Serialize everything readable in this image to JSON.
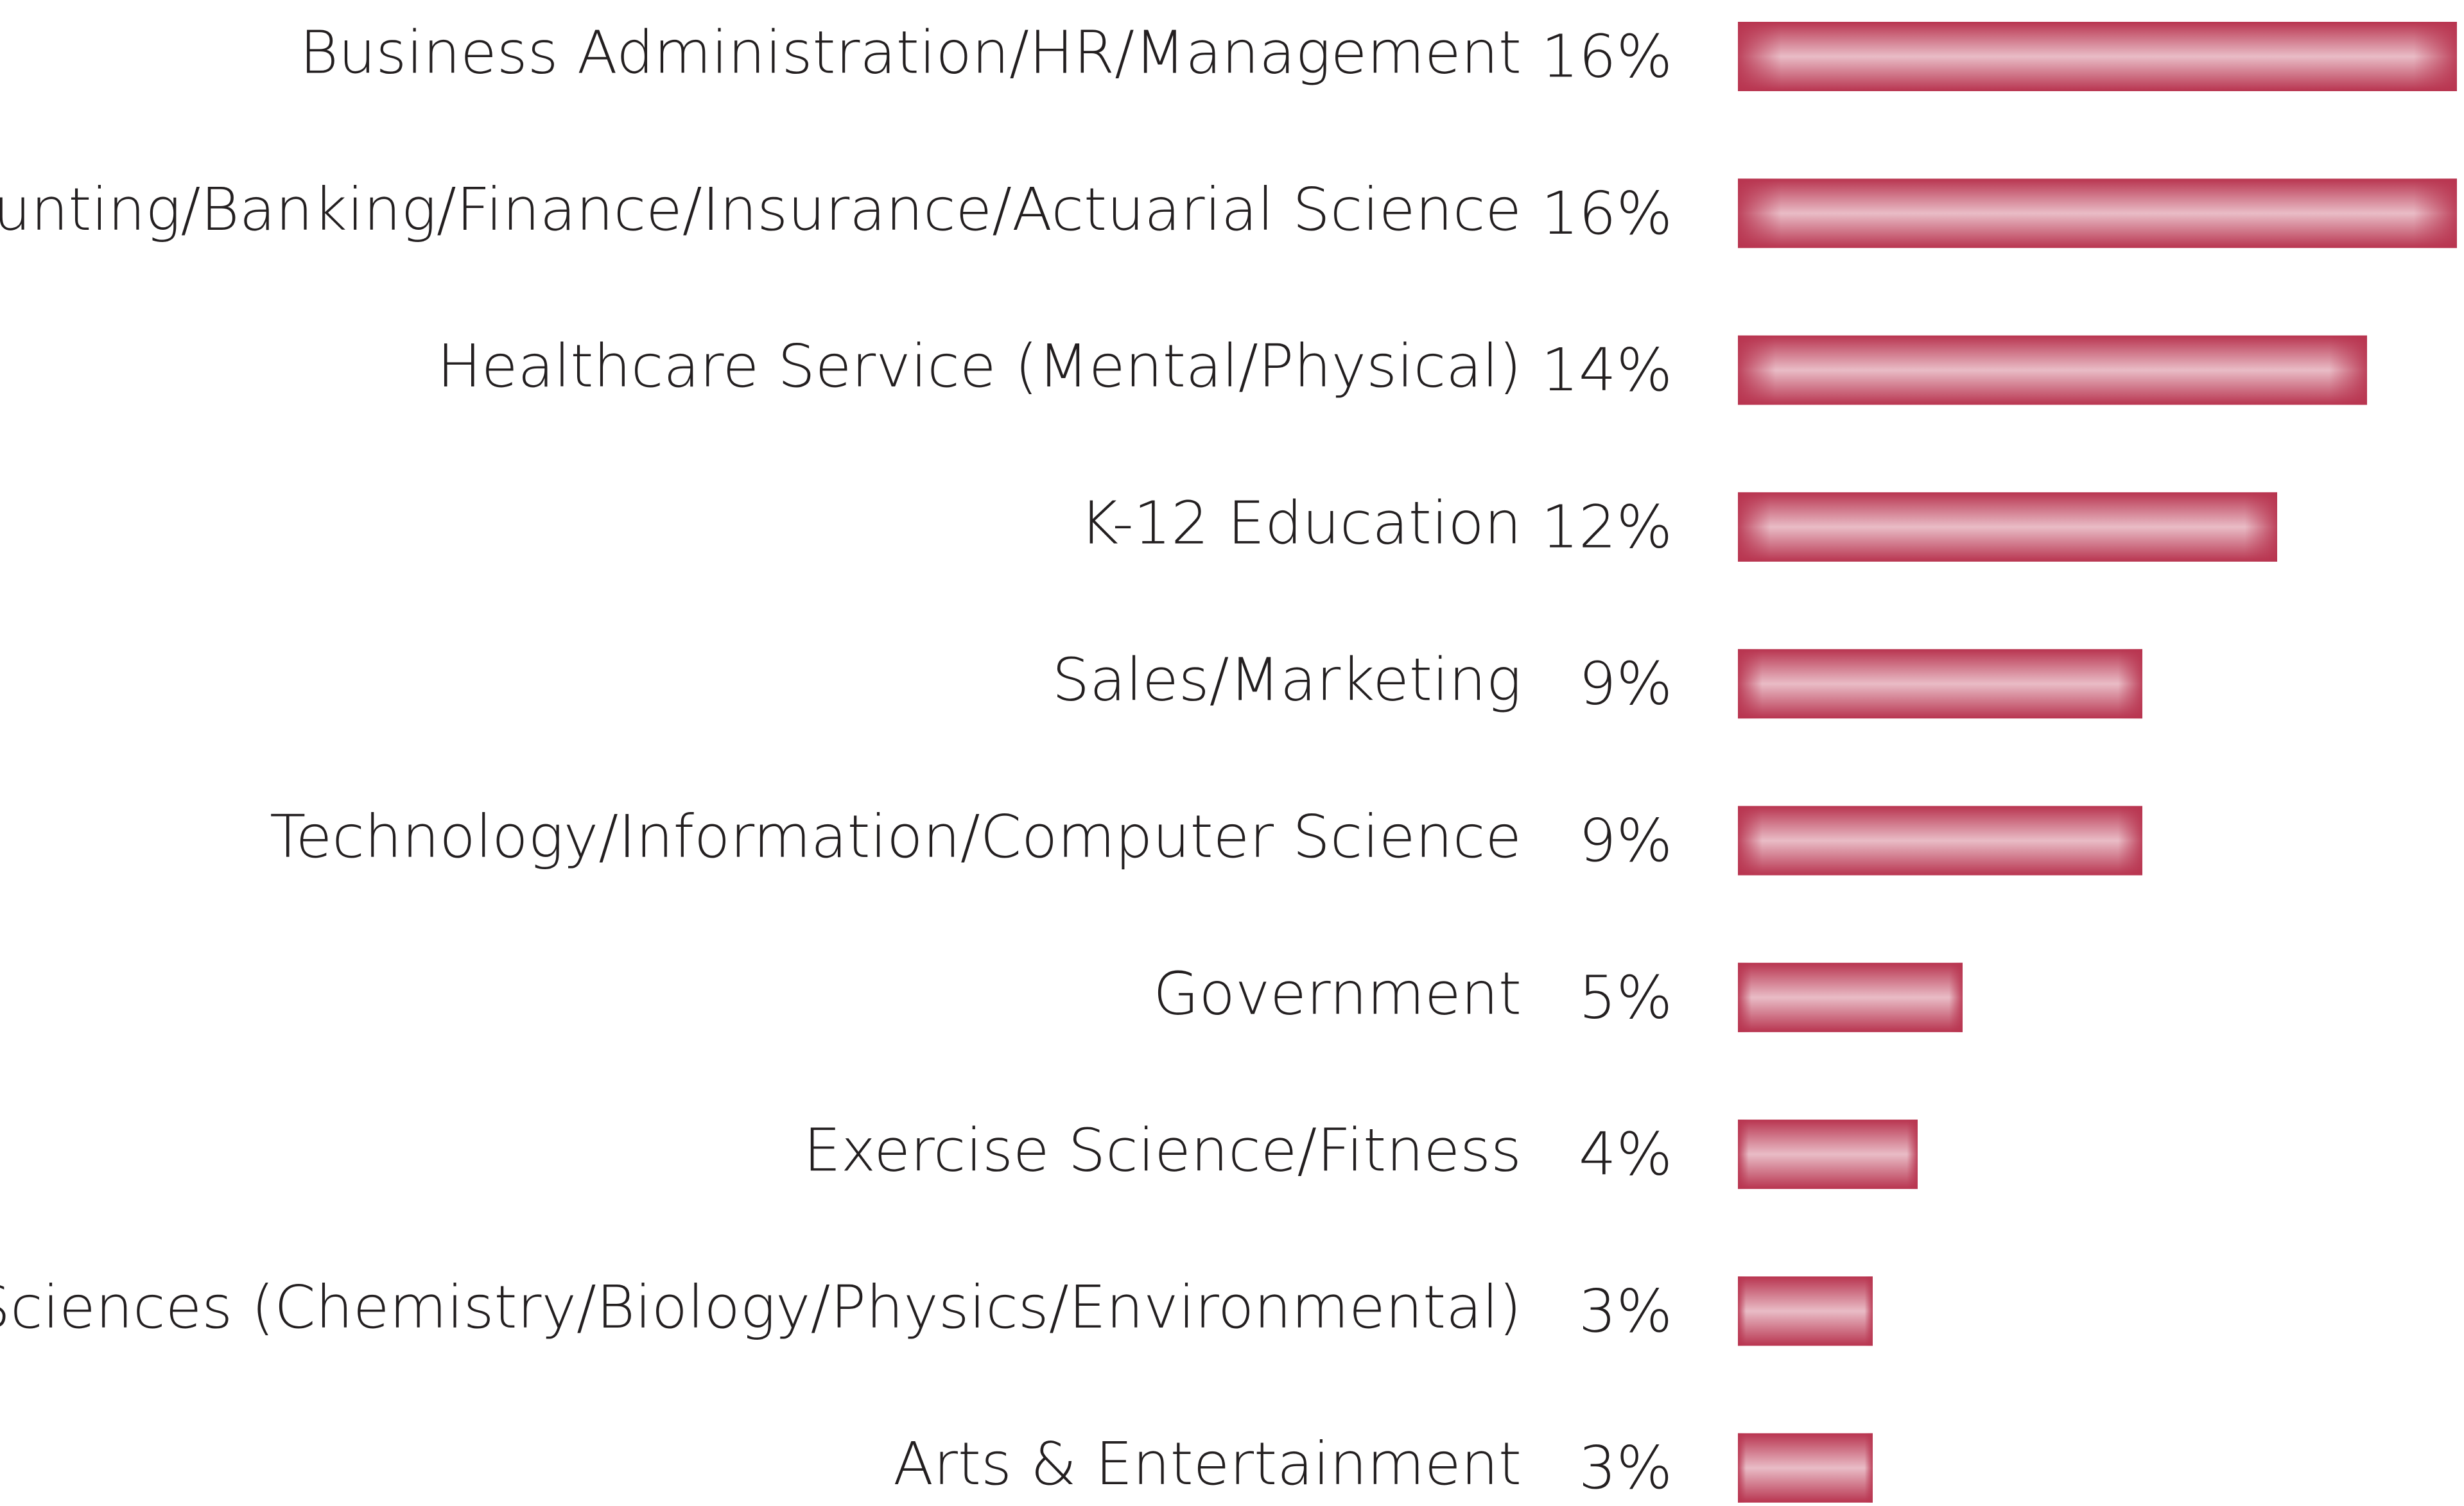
{
  "chart_data": {
    "type": "bar",
    "orientation": "horizontal",
    "color": "#b8344f",
    "categories": [
      "Business Administration/HR/Management",
      "Accounting/Banking/Finance/Insurance/Actuarial Science",
      "Healthcare Service (Mental/Physical)",
      "K-12 Education",
      "Sales/Marketing",
      "Technology/Information/Computer Science",
      "Government",
      "Exercise Science/Fitness",
      "Sciences (Chemistry/Biology/Physics/Environmental)",
      "Arts & Entertainment"
    ],
    "values": [
      16,
      16,
      14,
      12,
      9,
      9,
      5,
      4,
      3,
      3
    ],
    "value_labels": [
      "16%",
      "16%",
      "14%",
      "12%",
      "9%",
      "9%",
      "5%",
      "4%",
      "3%",
      "3%"
    ]
  }
}
